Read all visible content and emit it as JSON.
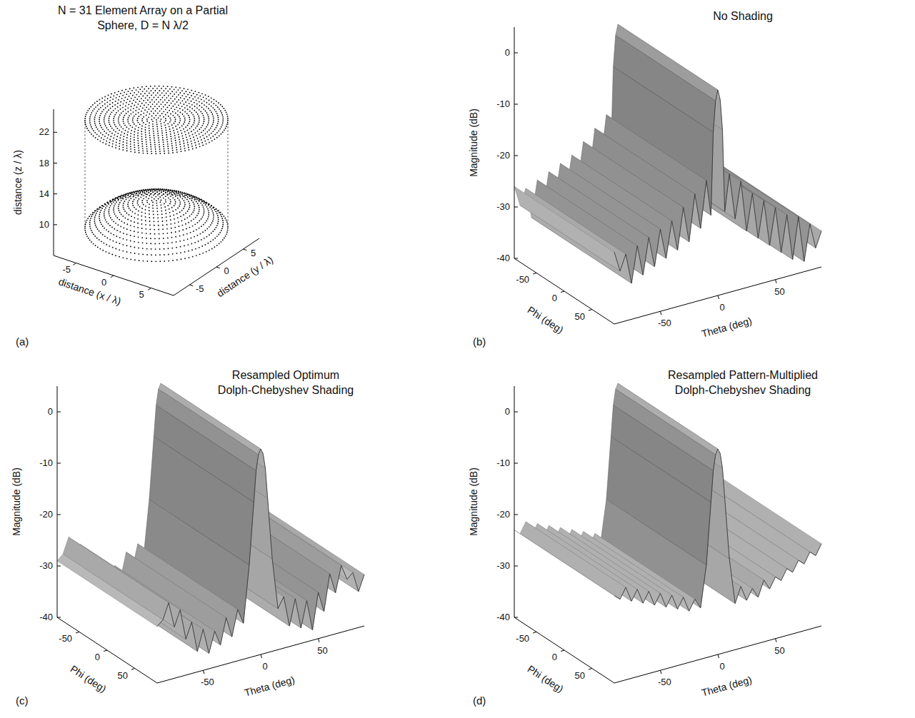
{
  "chart_data": [
    {
      "type": "array3d",
      "letter": "(a)",
      "title": "N = 31 Element Array on a Partial Sphere, D = N λ/2",
      "xlabel": "distance (x / λ)",
      "ylabel": "distance (y / λ)",
      "zlabel": "distance (z / λ)",
      "xlim": [
        -8,
        8
      ],
      "ylim": [
        -8,
        8
      ],
      "zlim": [
        6,
        25
      ],
      "xticks": [
        -5,
        0,
        5
      ],
      "yticks": [
        -5,
        0,
        5
      ],
      "zticks": [
        10,
        14,
        18,
        22
      ],
      "elements_across": 31,
      "radius": 7.75,
      "plane_z": 22.5,
      "cap_apex_z": 12,
      "cap_rim_z": 8.5
    },
    {
      "type": "surface",
      "letter": "(b)",
      "title": "No Shading",
      "xlabel": "Theta (deg)",
      "ylabel": "Phi (deg)",
      "zlabel": "Magnitude (dB)",
      "xlim": [
        -90,
        90
      ],
      "ylim": [
        -90,
        90
      ],
      "zlim": [
        -40,
        5
      ],
      "xticks": [
        -50,
        0,
        50
      ],
      "yticks": [
        -50,
        0,
        50
      ],
      "zticks": [
        -40,
        -30,
        -20,
        -10,
        0
      ],
      "theta": [
        -90,
        -85,
        -80,
        -75,
        -70,
        -65,
        -60,
        -55,
        -50,
        -45,
        -40,
        -35,
        -30,
        -25,
        -20,
        -15,
        -10,
        -6,
        -4,
        -2,
        0,
        2,
        4,
        6,
        10,
        15,
        20,
        25,
        30,
        35,
        40,
        45,
        50,
        55,
        60,
        65,
        70,
        75,
        80,
        85,
        90
      ],
      "magnitude": [
        -26,
        -30,
        -27,
        -33,
        -26,
        -32,
        -25,
        -31,
        -24,
        -30,
        -23,
        -29,
        -21,
        -28,
        -19,
        -26,
        -17,
        -24,
        -8,
        -2,
        0,
        -2,
        -8,
        -24,
        -17,
        -26,
        -19,
        -29,
        -22,
        -31,
        -24,
        -33,
        -26,
        -35,
        -28,
        -37,
        -29,
        -38,
        -31,
        -36,
        -33
      ]
    },
    {
      "type": "surface",
      "letter": "(c)",
      "title": "Resampled Optimum Dolph-Chebyshev Shading",
      "xlabel": "Theta (deg)",
      "ylabel": "Phi (deg)",
      "zlabel": "Magnitude (dB)",
      "xlim": [
        -90,
        90
      ],
      "ylim": [
        -90,
        90
      ],
      "zlim": [
        -40,
        5
      ],
      "xticks": [
        -50,
        0,
        50
      ],
      "yticks": [
        -50,
        0,
        50
      ],
      "zticks": [
        -40,
        -30,
        -20,
        -10,
        0
      ],
      "theta": [
        -90,
        -85,
        -80,
        -75,
        -70,
        -65,
        -60,
        -55,
        -50,
        -45,
        -40,
        -35,
        -30,
        -25,
        -20,
        -15,
        -10,
        -6,
        -4,
        -2,
        0,
        2,
        4,
        6,
        10,
        15,
        20,
        25,
        30,
        35,
        40,
        45,
        50,
        55,
        60,
        65,
        70,
        75,
        80,
        85,
        90
      ],
      "magnitude": [
        -29,
        -28,
        -25,
        -30,
        -27,
        -33,
        -30,
        -36,
        -32,
        -37,
        -33,
        -36,
        -31,
        -35,
        -30,
        -33,
        -22,
        -10,
        -4,
        -1,
        0,
        -1,
        -4,
        -10,
        -22,
        -32,
        -30,
        -36,
        -31,
        -37,
        -32,
        -38,
        -31,
        -35,
        -28,
        -32,
        -27,
        -30,
        -29,
        -33,
        -30
      ]
    },
    {
      "type": "surface",
      "letter": "(d)",
      "title": "Resampled Pattern-Multiplied Dolph-Chebyshev Shading",
      "xlabel": "Theta (deg)",
      "ylabel": "Phi (deg)",
      "zlabel": "Magnitude (dB)",
      "xlim": [
        -90,
        90
      ],
      "ylim": [
        -90,
        90
      ],
      "zlim": [
        -40,
        5
      ],
      "xticks": [
        -50,
        0,
        50
      ],
      "yticks": [
        -50,
        0,
        50
      ],
      "zticks": [
        -40,
        -30,
        -20,
        -10,
        0
      ],
      "theta": [
        -90,
        -85,
        -80,
        -75,
        -70,
        -65,
        -60,
        -55,
        -50,
        -45,
        -40,
        -35,
        -30,
        -25,
        -20,
        -15,
        -10,
        -6,
        -4,
        -2,
        0,
        2,
        4,
        6,
        10,
        15,
        20,
        25,
        30,
        35,
        40,
        45,
        50,
        55,
        60,
        65,
        70,
        75,
        80,
        85,
        90
      ],
      "magnitude": [
        -23,
        -24,
        -22,
        -25,
        -23,
        -26,
        -24,
        -27,
        -25,
        -28,
        -26,
        -29,
        -27,
        -30,
        -28,
        -30,
        -22,
        -10,
        -4,
        -1,
        0,
        -1,
        -4,
        -10,
        -22,
        -31,
        -28,
        -31,
        -29,
        -31,
        -28,
        -30,
        -28,
        -29,
        -27,
        -28,
        -26,
        -27,
        -25,
        -26,
        -24
      ]
    }
  ]
}
